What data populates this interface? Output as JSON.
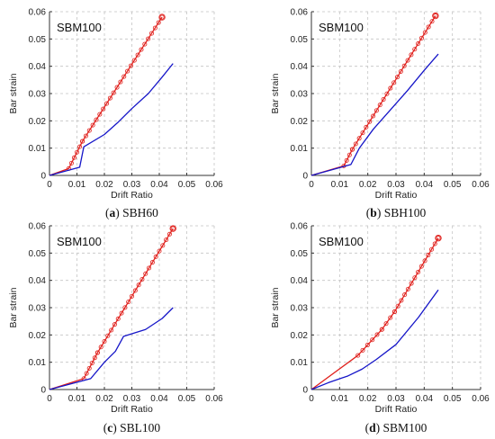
{
  "chart_data": [
    {
      "type": "line",
      "panel_letter": "a",
      "caption": "SBH60",
      "title": "SBM100",
      "xlabel": "Drift Ratio",
      "ylabel": "Bar strain",
      "xlim": [
        0,
        0.06
      ],
      "ylim": [
        0,
        0.06
      ],
      "xticks": [
        "0",
        "0.01",
        "0.02",
        "0.03",
        "0.04",
        "0.05",
        "0.06"
      ],
      "yticks": [
        "0",
        "0.01",
        "0.02",
        "0.03",
        "0.04",
        "0.05",
        "0.06"
      ],
      "grid": true,
      "series": [
        {
          "color": "#e0201c",
          "marker": "circle",
          "x": [
            0,
            0.007,
            0.012,
            0.041
          ],
          "y": [
            0,
            0.0025,
            0.0125,
            0.058
          ]
        },
        {
          "color": "#1515c8",
          "marker": "none",
          "x": [
            0,
            0.011,
            0.0125,
            0.02,
            0.025,
            0.03,
            0.036,
            0.041,
            0.045
          ],
          "y": [
            0,
            0.003,
            0.0105,
            0.015,
            0.0195,
            0.0245,
            0.03,
            0.036,
            0.041
          ]
        }
      ]
    },
    {
      "type": "line",
      "panel_letter": "b",
      "caption": "SBH100",
      "title": "SBM100",
      "xlabel": "Drift Ratio",
      "ylabel": "Bar strain",
      "xlim": [
        0,
        0.06
      ],
      "ylim": [
        0,
        0.06
      ],
      "xticks": [
        "0",
        "0.01",
        "0.02",
        "0.03",
        "0.04",
        "0.05",
        "0.06"
      ],
      "yticks": [
        "0",
        "0.01",
        "0.02",
        "0.03",
        "0.04",
        "0.05",
        "0.06"
      ],
      "grid": true,
      "series": [
        {
          "color": "#e0201c",
          "marker": "circle",
          "x": [
            0,
            0.0115,
            0.0145,
            0.044
          ],
          "y": [
            0,
            0.0035,
            0.0095,
            0.0585
          ]
        },
        {
          "color": "#1515c8",
          "marker": "none",
          "x": [
            0,
            0.014,
            0.017,
            0.022,
            0.028,
            0.034,
            0.04,
            0.045
          ],
          "y": [
            0,
            0.004,
            0.01,
            0.017,
            0.024,
            0.031,
            0.0385,
            0.0445
          ]
        }
      ]
    },
    {
      "type": "line",
      "panel_letter": "c",
      "caption": "SBL100",
      "title": "SBM100",
      "xlabel": "Drift Ratio",
      "ylabel": "Bar strain",
      "xlim": [
        0,
        0.06
      ],
      "ylim": [
        0,
        0.06
      ],
      "xticks": [
        "0",
        "0.01",
        "0.02",
        "0.03",
        "0.04",
        "0.05",
        "0.06"
      ],
      "yticks": [
        "0",
        "0.01",
        "0.02",
        "0.03",
        "0.04",
        "0.05",
        "0.06"
      ],
      "grid": true,
      "series": [
        {
          "color": "#e0201c",
          "marker": "circle",
          "x": [
            0,
            0.0125,
            0.0175,
            0.045
          ],
          "y": [
            0,
            0.004,
            0.0135,
            0.059
          ]
        },
        {
          "color": "#1515c8",
          "marker": "none",
          "x": [
            0,
            0.015,
            0.02,
            0.024,
            0.027,
            0.035,
            0.041,
            0.045
          ],
          "y": [
            0,
            0.004,
            0.01,
            0.014,
            0.0195,
            0.022,
            0.026,
            0.03
          ]
        }
      ]
    },
    {
      "type": "line",
      "panel_letter": "d",
      "caption": "SBM100",
      "title": "SBM100",
      "xlabel": "Drift Ratio",
      "ylabel": "Bar strain",
      "xlim": [
        0,
        0.06
      ],
      "ylim": [
        0,
        0.06
      ],
      "xticks": [
        "0",
        "0.01",
        "0.02",
        "0.03",
        "0.04",
        "0.05",
        "0.06"
      ],
      "yticks": [
        "0",
        "0.01",
        "0.02",
        "0.03",
        "0.04",
        "0.05",
        "0.06"
      ],
      "grid": true,
      "series": [
        {
          "color": "#e0201c",
          "marker": "circle",
          "x": [
            0,
            0.0165,
            0.025,
            0.0295,
            0.045
          ],
          "y": [
            0,
            0.0125,
            0.022,
            0.0285,
            0.0555
          ]
        },
        {
          "color": "#1515c8",
          "marker": "none",
          "x": [
            0,
            0.006,
            0.013,
            0.018,
            0.023,
            0.03,
            0.038,
            0.045
          ],
          "y": [
            0,
            0.0025,
            0.005,
            0.0075,
            0.011,
            0.0165,
            0.0265,
            0.0365
          ]
        }
      ]
    }
  ]
}
